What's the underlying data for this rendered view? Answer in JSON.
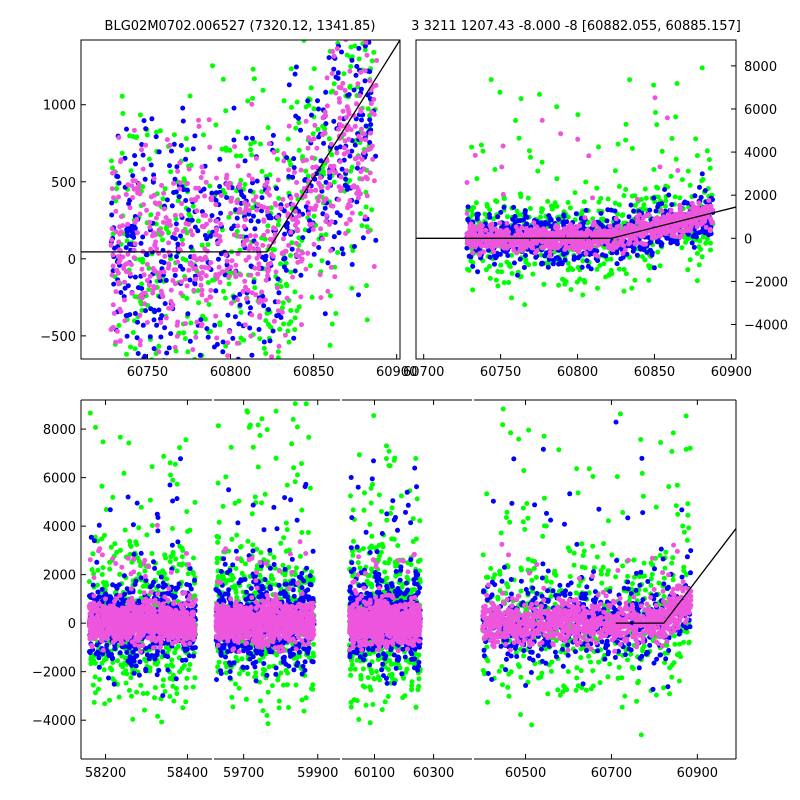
{
  "chart_data": [
    {
      "type": "scatter",
      "panel": "top-left",
      "title": "BLG02M0702.006527 (7320.12, 1341.85)",
      "xlim": [
        60710,
        60902
      ],
      "ylim": [
        -650,
        1420
      ],
      "xticks": [
        "60750",
        "60800",
        "60850",
        "60900"
      ],
      "yticks": [
        "-500",
        "0",
        "500",
        "1000"
      ],
      "series_colors": [
        "#0000ff",
        "#00ff00",
        "#ee55dd"
      ],
      "model_line": [
        [
          60710,
          45
        ],
        [
          60822,
          45
        ],
        [
          60902,
          1420
        ]
      ],
      "model_color": "#000000"
    },
    {
      "type": "scatter",
      "panel": "top-right",
      "title": "3 3211 1207.43 -8.000 -8 [60882.055, 60885.157]",
      "xlim": [
        60695,
        60903
      ],
      "ylim": [
        -5600,
        9200
      ],
      "xticks": [
        "60700",
        "60750",
        "60800",
        "60850",
        "60900"
      ],
      "yticks": [
        "-4000",
        "-2000",
        "0",
        "2000",
        "4000",
        "6000",
        "8000"
      ],
      "y_axis_side": "right",
      "series_colors": [
        "#0000ff",
        "#00ff00",
        "#ee55dd"
      ],
      "model_line": [
        [
          60695,
          0
        ],
        [
          60822,
          0
        ],
        [
          60903,
          1450
        ]
      ],
      "model_color": "#000000"
    },
    {
      "type": "scatter",
      "panel": "bottom",
      "broken_x_axis": true,
      "ylim": [
        -5600,
        9200
      ],
      "yticks": [
        "-4000",
        "-2000",
        "0",
        "2000",
        "4000",
        "6000",
        "8000"
      ],
      "segments": [
        {
          "xlim": [
            58140,
            58460
          ],
          "xticks": [
            "58200",
            "58400"
          ],
          "data_range": [
            58160,
            58420
          ]
        },
        {
          "xlim": [
            59620,
            59960
          ],
          "xticks": [
            "59700",
            "59900"
          ],
          "data_range": [
            59625,
            59890
          ]
        },
        {
          "xlim": [
            59990,
            60430
          ],
          "xticks": [
            "60100",
            "60300"
          ],
          "data_range": [
            60015,
            60255
          ]
        },
        {
          "xlim": [
            60380,
            60990
          ],
          "xticks": [
            "60500",
            "60700",
            "60900"
          ],
          "data_range": [
            60400,
            60885
          ]
        }
      ],
      "series_colors": [
        "#0000ff",
        "#00ff00",
        "#ee55dd"
      ],
      "model_line": [
        [
          60710,
          0
        ],
        [
          60822,
          0
        ],
        [
          60990,
          3900
        ]
      ],
      "model_color": "#000000"
    }
  ]
}
